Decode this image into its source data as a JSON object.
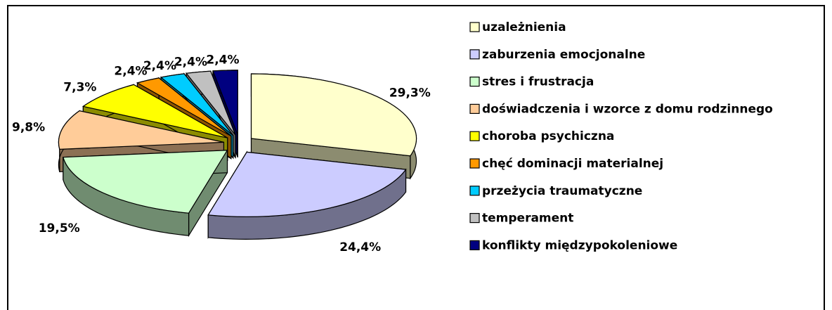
{
  "chart_data": {
    "type": "pie3d",
    "categories": [
      "uzależnienia",
      "zaburzenia emocjonalne",
      "stres i frustracja",
      "doświadczenia i wzorce z domu rodzinnego",
      "choroba psychiczna",
      "chęć dominacji materialnej",
      "przeżycia traumatyczne",
      "temperament",
      "konflikty międzypokoleniowe"
    ],
    "values": [
      29.3,
      24.4,
      19.5,
      9.8,
      7.3,
      2.4,
      2.4,
      2.4,
      2.4
    ],
    "value_labels": [
      "29,3%",
      "24,4%",
      "19,5%",
      "9,8%",
      "7,3%",
      "2,4%",
      "2,4%",
      "2,4%",
      "2,4%"
    ],
    "colors": [
      "#FFFFCC",
      "#CCCCFF",
      "#CCFFCC",
      "#FFCC99",
      "#FFFF00",
      "#FF9900",
      "#00CCFF",
      "#C0C0C0",
      "#000080"
    ],
    "legend": "right"
  }
}
